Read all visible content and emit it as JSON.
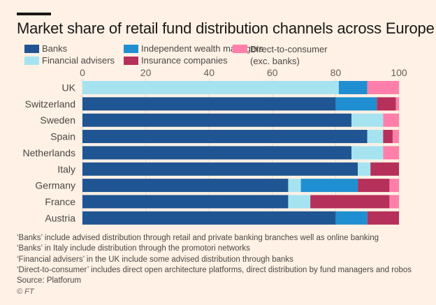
{
  "chart_data": {
    "type": "bar",
    "orientation": "horizontal",
    "stacked": true,
    "title": "Market share of retail fund distribution channels across Europe",
    "xlabel": "",
    "ylabel": "",
    "xlim": [
      0,
      100
    ],
    "xticks": [
      0,
      20,
      40,
      60,
      80,
      100
    ],
    "grid": true,
    "legend_position": "top",
    "categories": [
      "UK",
      "Switzerland",
      "Sweden",
      "Spain",
      "Netherlands",
      "Italy",
      "Germany",
      "France",
      "Austria"
    ],
    "series": [
      {
        "name": "Banks",
        "color": "#1f5592",
        "values": [
          0,
          80,
          85,
          90,
          85,
          87,
          65,
          65,
          80
        ]
      },
      {
        "name": "Financial advisers",
        "color": "#a6e3f1",
        "values": [
          81,
          0,
          10,
          5,
          10,
          4,
          4,
          7,
          0
        ]
      },
      {
        "name": "Independent wealth managers",
        "color": "#1f8fd1",
        "values": [
          9,
          13,
          0,
          0,
          0,
          0,
          18,
          0,
          10
        ]
      },
      {
        "name": "Insurance companies",
        "color": "#b5305b",
        "values": [
          0,
          6,
          0,
          3,
          0,
          9,
          10,
          25,
          10
        ]
      },
      {
        "name": "Direct-to-consumer (exc. banks)",
        "color": "#ff7faa",
        "values": [
          10,
          1,
          5,
          2,
          5,
          0,
          3,
          3,
          0
        ]
      }
    ]
  },
  "legend": [
    {
      "label": "Banks",
      "color": "#1f5592"
    },
    {
      "label": "Financial advisers",
      "color": "#a6e3f1"
    },
    {
      "label": "Independent wealth managers",
      "color": "#1f8fd1"
    },
    {
      "label": "Insurance companies",
      "color": "#b5305b"
    },
    {
      "label": "Direct-to-consumer",
      "label2": "(exc. banks)",
      "color": "#ff7faa"
    }
  ],
  "notes": [
    "‘Banks’ include advised distribution through retail and private banking branches well as online banking",
    "‘Banks’ in Italy include distribution through the promotori networks",
    "‘Financial advisers’ in the UK include some advised distribution through banks",
    "‘Direct-to-consumer’ includes direct open architecture platforms, direct distribution by fund managers and robos"
  ],
  "source": "Source: Platforum",
  "copyright": "© FT"
}
